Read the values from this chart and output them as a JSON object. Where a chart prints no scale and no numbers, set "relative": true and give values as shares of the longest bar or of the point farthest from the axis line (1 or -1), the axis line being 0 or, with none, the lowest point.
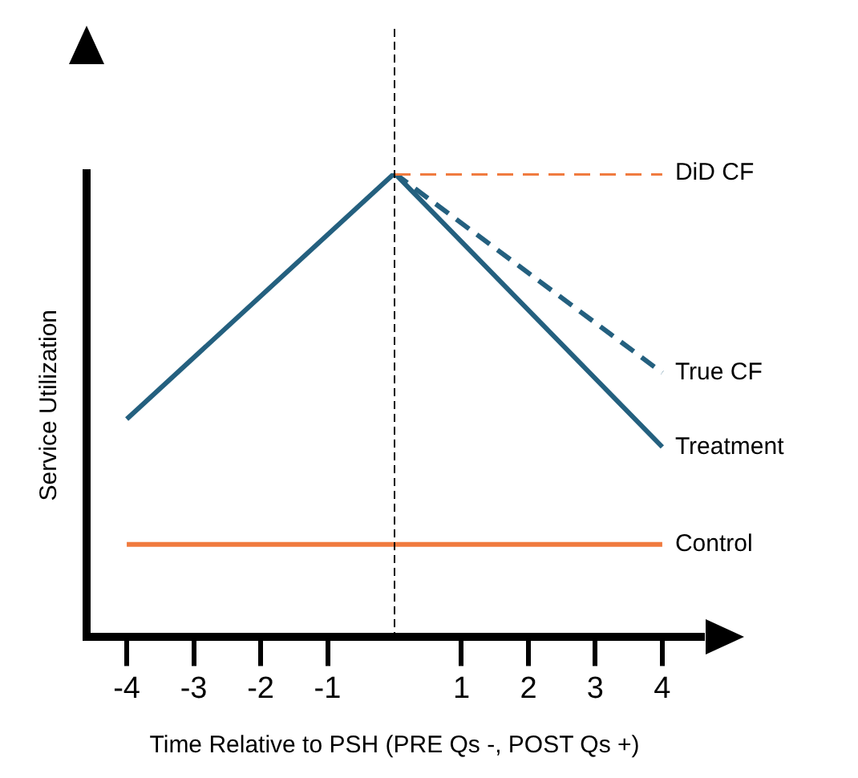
{
  "chart_data": {
    "type": "line",
    "relative": true,
    "xlabel": "Time Relative to PSH (PRE Qs -, POST Qs +)",
    "ylabel": "Service Utilization",
    "xlim": [
      -4.6,
      4.6
    ],
    "xticks": [
      -4,
      -3,
      -2,
      -1,
      1,
      2,
      3,
      4
    ],
    "series": [
      {
        "name": "DiD CF",
        "color": "#f07b3f",
        "x": [
          0,
          4
        ],
        "values": [
          1,
          1
        ],
        "line_style": "dashed"
      },
      {
        "name": "True CF",
        "color": "#24607f",
        "x": [
          0,
          4
        ],
        "values": [
          1,
          0.57
        ],
        "line_style": "dashed"
      },
      {
        "name": "Treatment",
        "color": "#24607f",
        "x": [
          -4,
          0,
          4
        ],
        "values": [
          0.47,
          1,
          0.41
        ],
        "line_style": "solid"
      },
      {
        "name": "Control",
        "color": "#f07b3f",
        "x": [
          -4,
          4
        ],
        "values": [
          0.2,
          0.2
        ],
        "line_style": "solid"
      }
    ],
    "ref_lines": [
      {
        "axis": "x",
        "value": 0,
        "color": "#000000",
        "line_style": "dashed"
      }
    ],
    "grid": false,
    "legend": false,
    "marker": "none"
  }
}
